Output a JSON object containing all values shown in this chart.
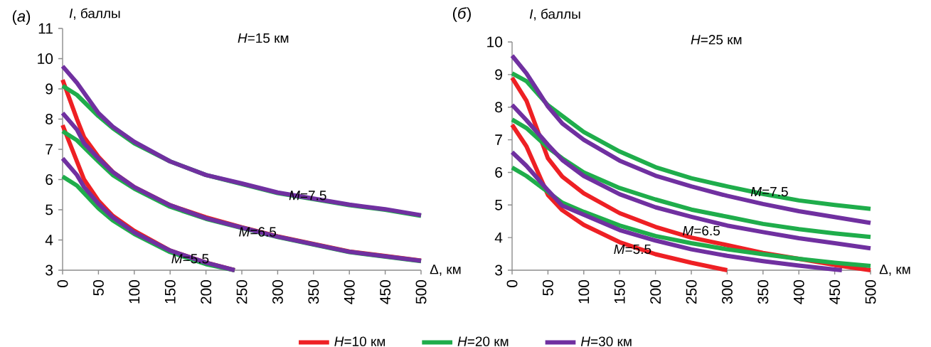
{
  "chart_data": [
    {
      "type": "line",
      "title": "*H*=15 км",
      "xlabel": "Δ, км",
      "ylabel": "*I*, баллы",
      "xlim": [
        0,
        500
      ],
      "ylim": [
        3,
        11
      ],
      "xticks": [
        0,
        50,
        100,
        150,
        200,
        250,
        300,
        350,
        400,
        450,
        500
      ],
      "yticks": [
        3,
        4,
        5,
        6,
        7,
        8,
        9,
        10,
        11
      ],
      "legend": "bottom",
      "annotations": [
        "(*а*)",
        {
          "text": "*M*=7.5",
          "x": 342,
          "y": 5.38
        },
        {
          "text": "*M*=6.5",
          "x": 272,
          "y": 4.27
        },
        {
          "text": "*M*=5.5",
          "x": 178,
          "y": 3.38
        }
      ],
      "series": [
        {
          "name": "*H*=10 км",
          "color": "#ee2024",
          "x": [
            0,
            20,
            30,
            50,
            70,
            100,
            150,
            200,
            250,
            300,
            350,
            400,
            450,
            500
          ],
          "values": [
            9.3,
            8.0,
            7.4,
            6.75,
            6.25,
            5.75,
            5.15,
            4.75,
            4.42,
            4.12,
            3.87,
            3.62,
            3.47,
            3.32
          ]
        },
        {
          "color": "#ee2024",
          "x": [
            0,
            20,
            30,
            50,
            70,
            100,
            150,
            200,
            240
          ],
          "values": [
            7.8,
            6.6,
            6.0,
            5.3,
            4.8,
            4.3,
            3.65,
            3.25,
            3.0
          ]
        },
        {
          "name": "*H*=20 км",
          "color": "#1fad4b",
          "x": [
            0,
            20,
            50,
            70,
            100,
            150,
            200,
            250,
            300,
            350,
            400,
            450,
            500
          ],
          "values": [
            9.1,
            8.8,
            8.1,
            7.7,
            7.2,
            6.6,
            6.15,
            5.85,
            5.55,
            5.35,
            5.15,
            5.0,
            4.8
          ]
        },
        {
          "color": "#1fad4b",
          "x": [
            0,
            20,
            50,
            70,
            100,
            150,
            200,
            250,
            300,
            350,
            400,
            450,
            500
          ],
          "values": [
            7.6,
            7.3,
            6.6,
            6.15,
            5.7,
            5.1,
            4.7,
            4.4,
            4.1,
            3.85,
            3.6,
            3.45,
            3.3
          ]
        },
        {
          "color": "#1fad4b",
          "x": [
            0,
            20,
            50,
            70,
            100,
            150,
            200,
            240
          ],
          "values": [
            6.1,
            5.8,
            5.05,
            4.65,
            4.2,
            3.6,
            3.2,
            3.0
          ]
        },
        {
          "name": "*H*=30 км",
          "color": "#7030a0",
          "x": [
            0,
            20,
            50,
            70,
            100,
            150,
            200,
            250,
            300,
            350,
            400,
            450,
            500
          ],
          "values": [
            9.75,
            9.2,
            8.2,
            7.75,
            7.25,
            6.6,
            6.15,
            5.87,
            5.57,
            5.37,
            5.17,
            5.02,
            4.82
          ]
        },
        {
          "color": "#7030a0",
          "x": [
            0,
            20,
            30,
            50,
            70,
            100,
            150,
            200,
            250,
            300,
            350,
            400,
            450,
            500
          ],
          "values": [
            8.2,
            7.65,
            7.2,
            6.7,
            6.25,
            5.75,
            5.15,
            4.72,
            4.41,
            4.11,
            3.86,
            3.61,
            3.46,
            3.31
          ]
        },
        {
          "color": "#7030a0",
          "x": [
            0,
            20,
            30,
            50,
            70,
            100,
            150,
            200,
            240
          ],
          "values": [
            6.7,
            6.15,
            5.75,
            5.2,
            4.75,
            4.25,
            3.65,
            3.25,
            3.0
          ]
        }
      ]
    },
    {
      "type": "line",
      "title": "*H*=25 км",
      "xlabel": "Δ, км",
      "ylabel": "*I*, баллы",
      "xlim": [
        0,
        500
      ],
      "ylim": [
        3,
        10
      ],
      "xticks": [
        0,
        50,
        100,
        150,
        200,
        250,
        300,
        350,
        400,
        450,
        500
      ],
      "yticks": [
        3,
        4,
        5,
        6,
        7,
        8,
        9,
        10
      ],
      "annotations": [
        "(*б*)",
        {
          "text": "*M*=7.5",
          "x": 359,
          "y": 5.32
        },
        {
          "text": "*M*=6.5",
          "x": 264,
          "y": 4.56
        },
        {
          "text": "*M*=5.5",
          "x": 168,
          "y": 3.73
        }
      ],
      "series": [
        {
          "color": "#ee2024",
          "x": [
            0,
            20,
            50,
            70,
            100,
            150,
            200,
            250,
            300,
            350,
            400,
            450,
            500
          ],
          "values": [
            8.9,
            8.2,
            6.43,
            5.87,
            5.36,
            4.75,
            4.33,
            4.0,
            3.77,
            3.53,
            3.35,
            3.16,
            3.0
          ]
        },
        {
          "color": "#ee2024",
          "x": [
            0,
            20,
            50,
            70,
            100,
            150,
            200,
            250,
            300
          ],
          "values": [
            7.46,
            6.8,
            5.31,
            4.84,
            4.39,
            3.86,
            3.49,
            3.23,
            3.0
          ]
        },
        {
          "color": "#1fad4b",
          "x": [
            0,
            20,
            50,
            100,
            150,
            200,
            250,
            300,
            350,
            400,
            450,
            500
          ],
          "values": [
            9.04,
            8.8,
            8.06,
            7.24,
            6.64,
            6.16,
            5.82,
            5.57,
            5.34,
            5.14,
            5.0,
            4.88
          ]
        },
        {
          "color": "#1fad4b",
          "x": [
            0,
            20,
            50,
            70,
            100,
            150,
            200,
            250,
            300,
            350,
            400,
            450,
            500
          ],
          "values": [
            7.62,
            7.36,
            6.76,
            6.43,
            6.0,
            5.52,
            5.17,
            4.86,
            4.64,
            4.42,
            4.26,
            4.13,
            4.02
          ]
        },
        {
          "color": "#1fad4b",
          "x": [
            0,
            20,
            50,
            70,
            100,
            150,
            200,
            250,
            300,
            350,
            400,
            450,
            500
          ],
          "values": [
            6.15,
            5.89,
            5.4,
            5.07,
            4.79,
            4.37,
            4.05,
            3.83,
            3.64,
            3.49,
            3.35,
            3.23,
            3.13
          ]
        },
        {
          "color": "#7030a0",
          "x": [
            0,
            20,
            50,
            70,
            100,
            150,
            200,
            250,
            300,
            350,
            400,
            450,
            500
          ],
          "values": [
            9.58,
            9.04,
            8.02,
            7.5,
            7.0,
            6.36,
            5.9,
            5.57,
            5.28,
            5.03,
            4.81,
            4.63,
            4.45
          ]
        },
        {
          "color": "#7030a0",
          "x": [
            0,
            20,
            50,
            70,
            100,
            150,
            200,
            250,
            300,
            350,
            400,
            450,
            500
          ],
          "values": [
            8.07,
            7.6,
            6.85,
            6.38,
            5.89,
            5.33,
            4.93,
            4.64,
            4.37,
            4.17,
            3.98,
            3.83,
            3.67
          ]
        },
        {
          "color": "#7030a0",
          "x": [
            0,
            20,
            50,
            70,
            100,
            150,
            200,
            250,
            300,
            350,
            400,
            450,
            460
          ],
          "values": [
            6.62,
            6.2,
            5.45,
            4.98,
            4.7,
            4.23,
            3.91,
            3.64,
            3.44,
            3.28,
            3.14,
            3.02,
            3.0
          ]
        }
      ]
    }
  ]
}
